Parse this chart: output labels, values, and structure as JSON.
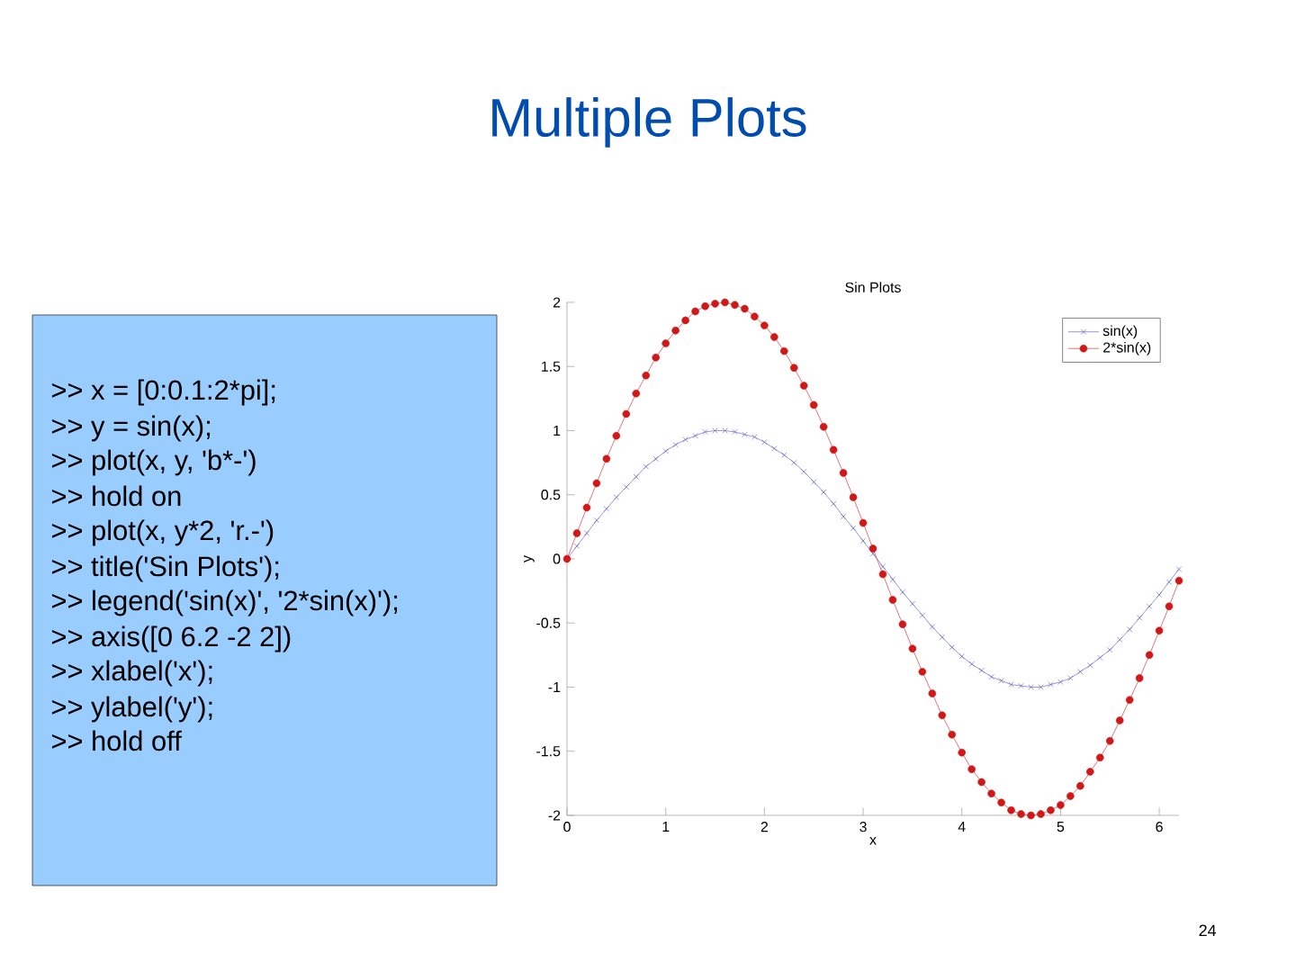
{
  "chart_data": {
    "type": "line",
    "title": "Sin Plots",
    "xlabel": "x",
    "ylabel": "y",
    "x": [
      0,
      0.1,
      0.2,
      0.3,
      0.4,
      0.5,
      0.6,
      0.7,
      0.8,
      0.9,
      1.0,
      1.1,
      1.2,
      1.3,
      1.4,
      1.5,
      1.6,
      1.7,
      1.8,
      1.9,
      2.0,
      2.1,
      2.2,
      2.3,
      2.4,
      2.5,
      2.6,
      2.7,
      2.8,
      2.9,
      3.0,
      3.1,
      3.2,
      3.3,
      3.4,
      3.5,
      3.6,
      3.7,
      3.8,
      3.9,
      4.0,
      4.1,
      4.2,
      4.3,
      4.4,
      4.5,
      4.6,
      4.7,
      4.8,
      4.9,
      5.0,
      5.1,
      5.2,
      5.3,
      5.4,
      5.5,
      5.6,
      5.7,
      5.8,
      5.9,
      6.0,
      6.1,
      6.2
    ],
    "series": [
      {
        "name": "sin(x)",
        "color": "#5050c8",
        "marker": "cross",
        "line_style": "solid",
        "values": [
          0,
          0.1,
          0.2,
          0.3,
          0.39,
          0.48,
          0.56,
          0.64,
          0.72,
          0.78,
          0.84,
          0.89,
          0.93,
          0.96,
          0.99,
          1.0,
          1.0,
          0.99,
          0.97,
          0.95,
          0.91,
          0.86,
          0.81,
          0.75,
          0.68,
          0.6,
          0.52,
          0.43,
          0.33,
          0.24,
          0.14,
          0.04,
          -0.06,
          -0.16,
          -0.26,
          -0.35,
          -0.44,
          -0.53,
          -0.61,
          -0.69,
          -0.76,
          -0.82,
          -0.87,
          -0.92,
          -0.95,
          -0.98,
          -0.99,
          -1.0,
          -1.0,
          -0.98,
          -0.96,
          -0.93,
          -0.88,
          -0.83,
          -0.77,
          -0.71,
          -0.63,
          -0.55,
          -0.46,
          -0.37,
          -0.28,
          -0.18,
          -0.08
        ]
      },
      {
        "name": "2*sin(x)",
        "color": "#d01818",
        "marker": "circle",
        "line_style": "solid",
        "values": [
          0,
          0.2,
          0.4,
          0.59,
          0.78,
          0.96,
          1.13,
          1.29,
          1.43,
          1.57,
          1.68,
          1.78,
          1.86,
          1.93,
          1.97,
          1.99,
          2.0,
          1.98,
          1.95,
          1.89,
          1.82,
          1.73,
          1.62,
          1.49,
          1.35,
          1.2,
          1.03,
          0.85,
          0.67,
          0.48,
          0.28,
          0.08,
          -0.12,
          -0.32,
          -0.51,
          -0.7,
          -0.88,
          -1.05,
          -1.22,
          -1.37,
          -1.51,
          -1.64,
          -1.74,
          -1.83,
          -1.9,
          -1.96,
          -1.99,
          -2.0,
          -1.99,
          -1.96,
          -1.92,
          -1.85,
          -1.77,
          -1.66,
          -1.55,
          -1.42,
          -1.26,
          -1.1,
          -0.93,
          -0.75,
          -0.56,
          -0.37,
          -0.17
        ]
      }
    ],
    "xlim": [
      0,
      6.2
    ],
    "ylim": [
      -2,
      2
    ],
    "xticks": [
      0,
      1,
      2,
      3,
      4,
      5,
      6
    ],
    "yticks": [
      -2,
      -1.5,
      -1,
      -0.5,
      0,
      0.5,
      1,
      1.5,
      2
    ],
    "legend": "top right",
    "grid": false,
    "annotations": [
      "Multiple Plots",
      ">> x = [0:0.1:2*pi];",
      ">> y = sin(x);",
      ">> plot(x, y, 'b*-')",
      ">> hold on",
      ">> plot(x, y*2, 'r.-')",
      ">> title('Sin Plots');",
      ">> legend('sin(x)', '2*sin(x)');",
      ">> axis([0 6.2 -2 2])",
      ">> xlabel('x');",
      ">> ylabel('y');",
      ">> hold off",
      "24"
    ]
  }
}
